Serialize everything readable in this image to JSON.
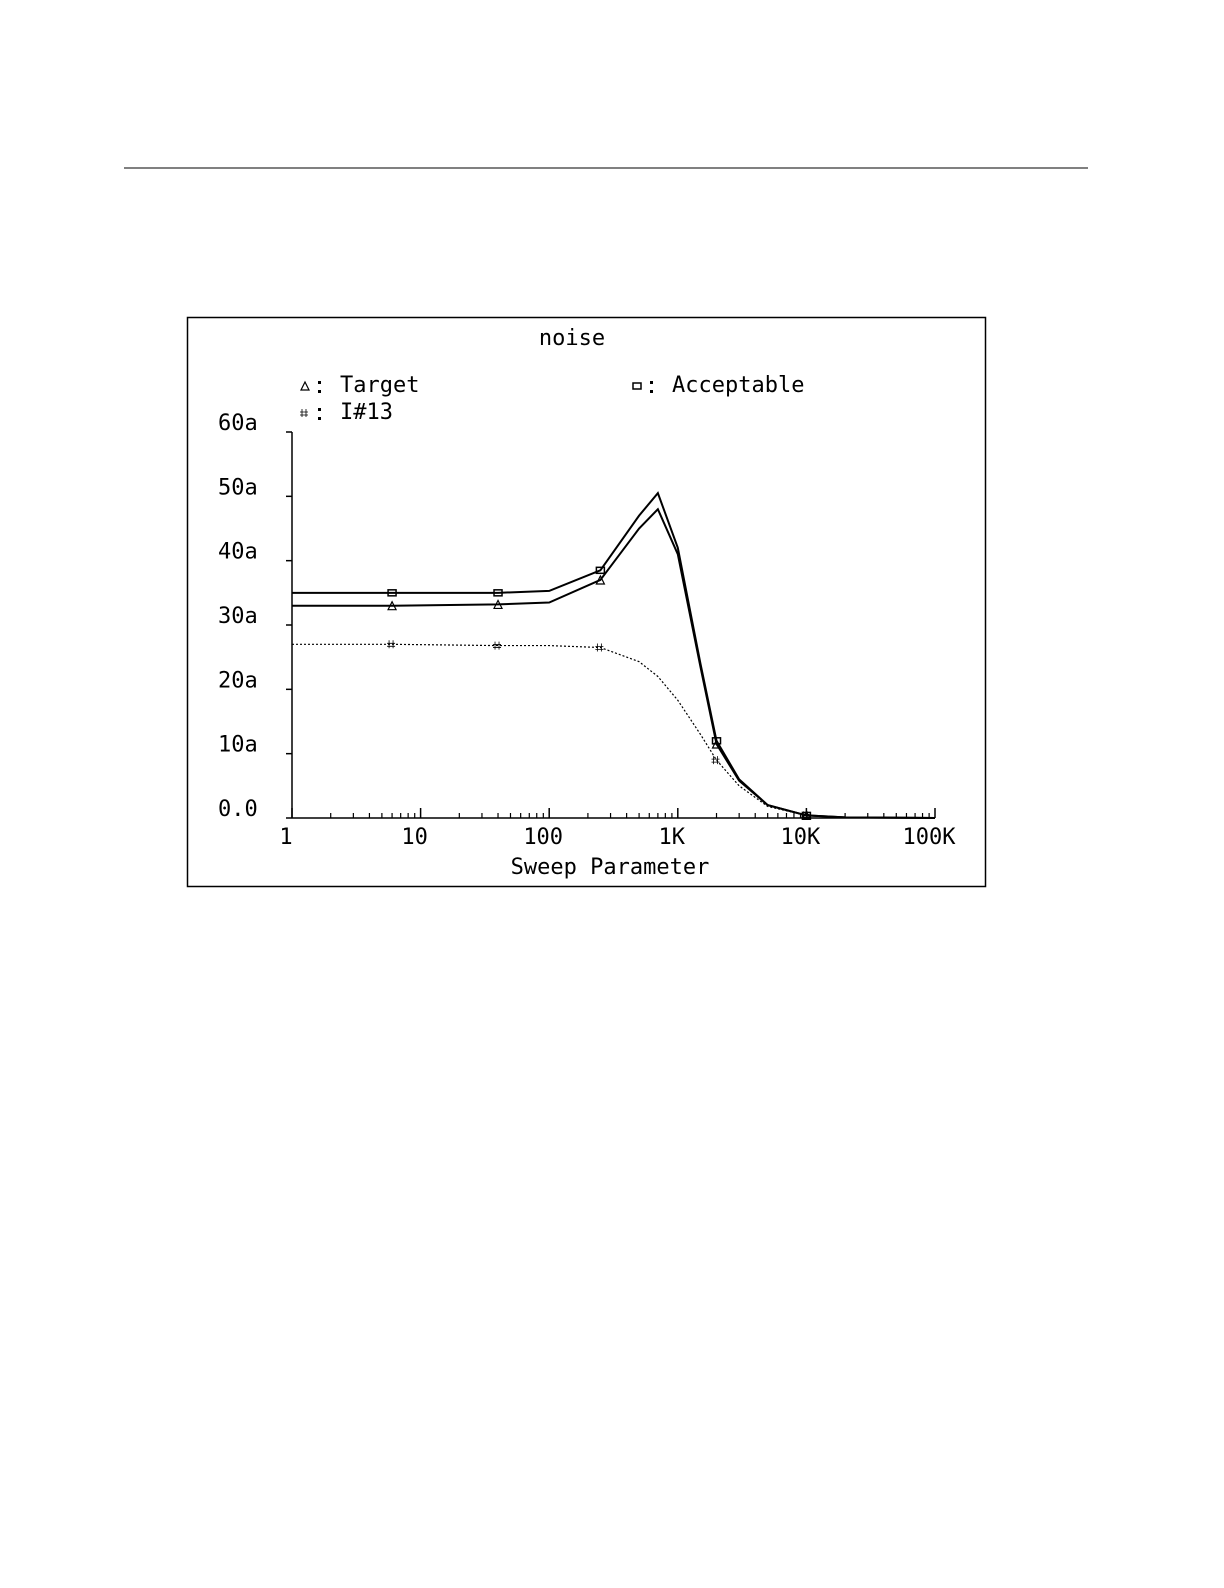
{
  "chart_data": {
    "type": "line",
    "title": "noise",
    "xlabel": "Sweep Parameter",
    "xscale": "log",
    "xlim": [
      1,
      100000
    ],
    "xticks": [
      1,
      10,
      100,
      {
        "value": 1000,
        "label": "1K"
      },
      {
        "value": 10000,
        "label": "10K"
      },
      {
        "value": 100000,
        "label": "100K"
      }
    ],
    "ylim": [
      0,
      60
    ],
    "yticks": [
      {
        "value": 0,
        "label": "0.0"
      },
      {
        "value": 10,
        "label": "10a"
      },
      {
        "value": 20,
        "label": "20a"
      },
      {
        "value": 30,
        "label": "30a"
      },
      {
        "value": 40,
        "label": "40a"
      },
      {
        "value": 50,
        "label": "50a"
      },
      {
        "value": 60,
        "label": "60a"
      }
    ],
    "x": [
      1,
      6,
      40,
      100,
      250,
      500,
      700,
      1000,
      1500,
      2000,
      3000,
      5000,
      10000,
      20000,
      100000
    ],
    "series": [
      {
        "name": "Target",
        "color": "#000000",
        "values": [
          33,
          33,
          33.2,
          33.5,
          37,
          45,
          48,
          41,
          23.5,
          11.5,
          5.8,
          2,
          0.4,
          0.1,
          0
        ]
      },
      {
        "name": "Acceptable",
        "color": "#000000",
        "values": [
          35,
          35,
          35,
          35.3,
          38.5,
          47,
          50.5,
          42,
          24,
          12,
          6,
          2,
          0.4,
          0.1,
          0
        ]
      },
      {
        "name": "I#13",
        "color": "#000000",
        "values": [
          27,
          27,
          26.8,
          26.8,
          26.5,
          24.3,
          22,
          18.3,
          13,
          9,
          5,
          1.8,
          0.4,
          0.1,
          0
        ]
      }
    ]
  }
}
